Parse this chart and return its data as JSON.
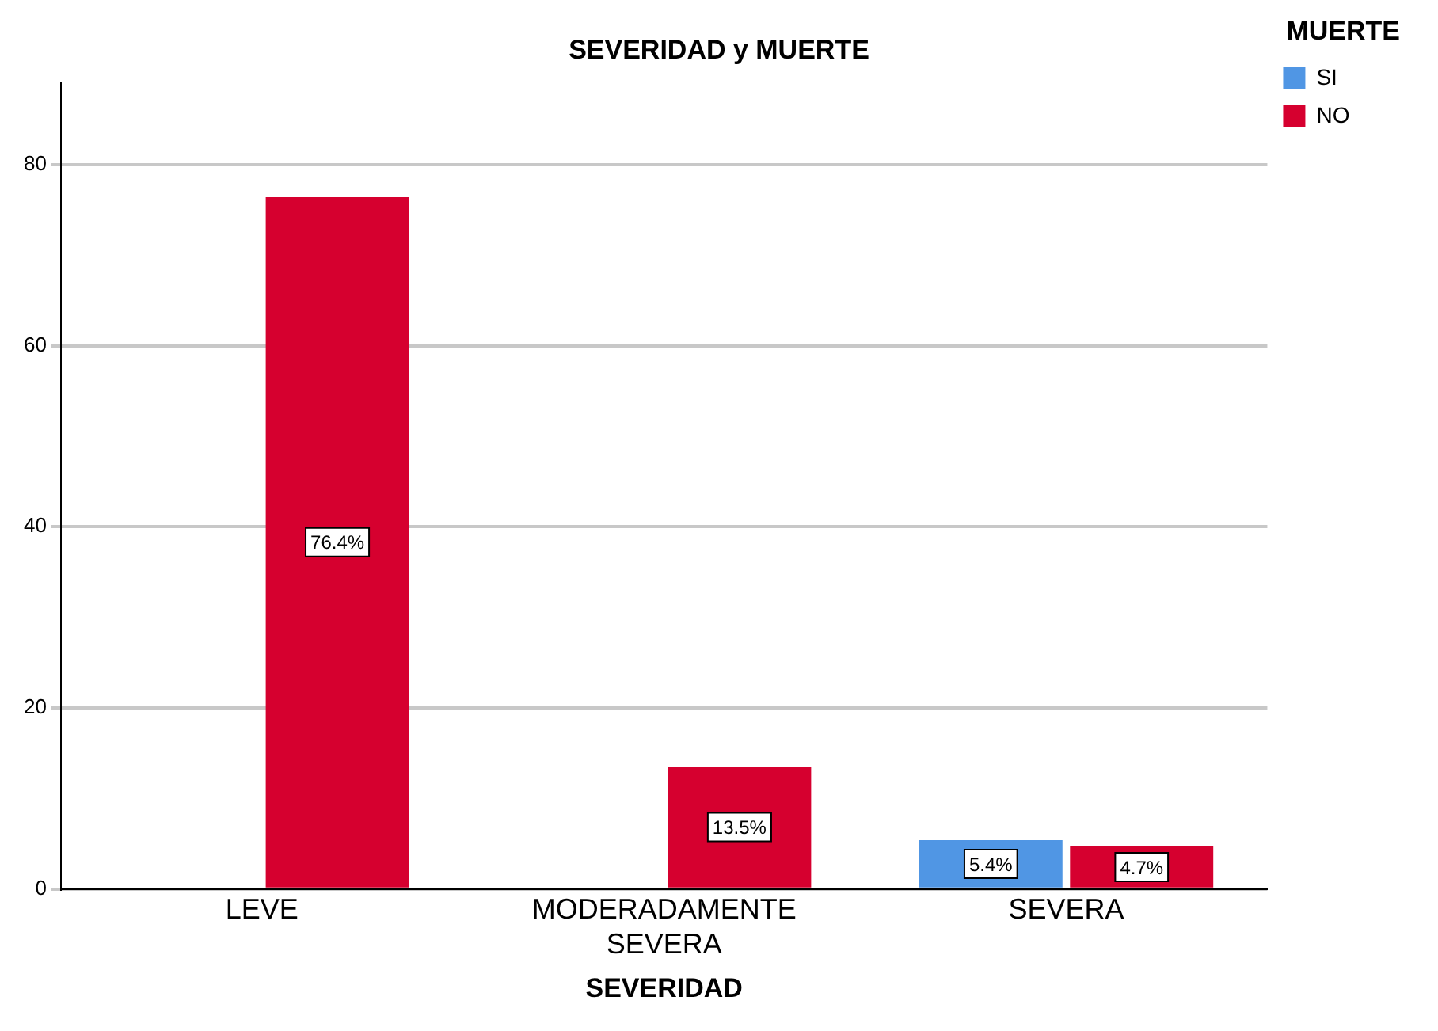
{
  "chart_data": {
    "type": "bar",
    "title": "SEVERIDAD y MUERTE",
    "xlabel": "SEVERIDAD",
    "legend_title": "MUERTE",
    "categories": [
      "LEVE",
      "MODERADAMENTE SEVERA",
      "SEVERA"
    ],
    "series": [
      {
        "name": "SI",
        "color": "#5096e4",
        "values": [
          null,
          null,
          5.4
        ],
        "value_labels": [
          null,
          null,
          "5.4%"
        ]
      },
      {
        "name": "NO",
        "color": "#d6002f",
        "values": [
          76.4,
          13.5,
          4.7
        ],
        "value_labels": [
          "76.4%",
          "13.5%",
          "4.7%"
        ]
      }
    ],
    "ylim": [
      0,
      89
    ],
    "yticks": [
      0,
      20,
      40,
      60,
      80
    ],
    "grid": "y",
    "legend": "top right"
  }
}
